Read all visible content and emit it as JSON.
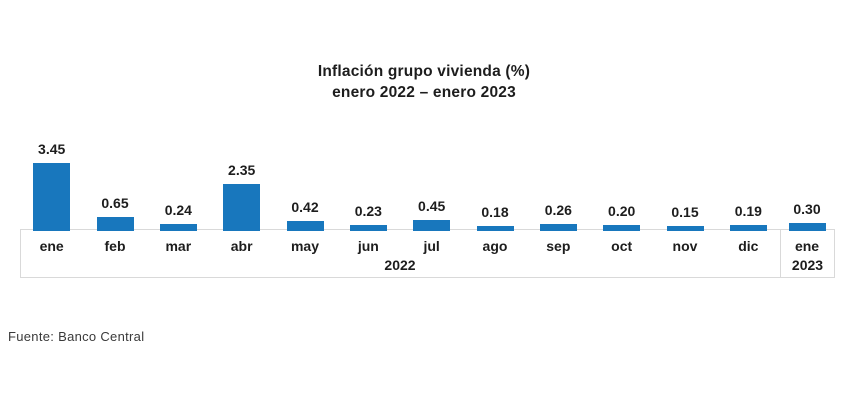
{
  "title": {
    "line1": "Inflación grupo vivienda (%)",
    "line2": "enero 2022 – enero 2023"
  },
  "source": "Fuente: Banco Central",
  "colors": {
    "bar": "#1877BD",
    "axis_border": "#D9D9D9",
    "text": "#1D1D1D",
    "source_text": "#3A3A3A"
  },
  "chart_data": {
    "type": "bar",
    "title": "Inflación grupo vivienda (%)",
    "subtitle": "enero 2022 – enero 2023",
    "categories": [
      "ene",
      "feb",
      "mar",
      "abr",
      "may",
      "jun",
      "jul",
      "ago",
      "sep",
      "oct",
      "nov",
      "dic",
      "ene"
    ],
    "group_labels": [
      "2022",
      "2023"
    ],
    "group_membership": [
      12,
      1
    ],
    "values": [
      3.45,
      0.65,
      0.24,
      2.35,
      0.42,
      0.23,
      0.45,
      0.18,
      0.26,
      0.2,
      0.15,
      0.19,
      0.3
    ],
    "value_labels": [
      "3.45",
      "0.65",
      "0.24",
      "2.35",
      "0.42",
      "0.23",
      "0.45",
      "0.18",
      "0.26",
      "0.20",
      "0.15",
      "0.19",
      "0.30"
    ],
    "xlabel": "",
    "ylabel": "",
    "ylim": [
      0,
      3.6
    ],
    "grid": false,
    "legend": false,
    "value_labels_position": "above-bars",
    "axis_band": "boxed"
  }
}
